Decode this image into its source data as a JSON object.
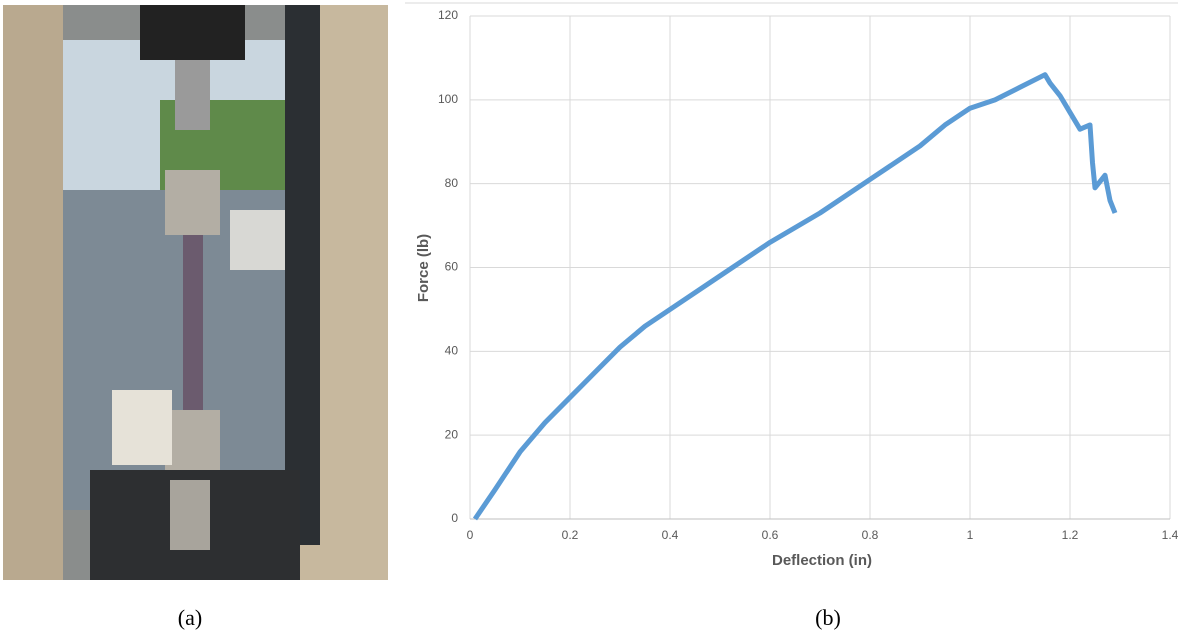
{
  "panel_labels": [
    "(a)",
    "(b)"
  ],
  "chart_data": {
    "type": "line",
    "x_label": "Deflection (in)",
    "y_label": "Force (lb)",
    "x": [
      0.01,
      0.05,
      0.1,
      0.15,
      0.2,
      0.25,
      0.3,
      0.35,
      0.4,
      0.5,
      0.6,
      0.7,
      0.8,
      0.9,
      0.95,
      1.0,
      1.05,
      1.1,
      1.15,
      1.16,
      1.18,
      1.2,
      1.22,
      1.24,
      1.245,
      1.25,
      1.27,
      1.28,
      1.29
    ],
    "series": [
      {
        "name": "Force",
        "color": "#5b9bd5",
        "values": [
          0,
          7,
          16,
          23,
          29,
          35,
          41,
          46,
          50,
          58,
          66,
          73,
          81,
          89,
          94,
          98,
          100,
          103,
          106,
          104,
          101,
          97,
          93,
          94,
          85,
          79,
          82,
          76,
          73
        ]
      }
    ],
    "xlim": [
      0,
      1.4
    ],
    "ylim": [
      0,
      120
    ],
    "xticks": [
      0,
      0.2,
      0.4,
      0.6,
      0.8,
      1,
      1.2,
      1.4
    ],
    "yticks": [
      0,
      20,
      40,
      60,
      80,
      100,
      120
    ],
    "grid": true
  }
}
